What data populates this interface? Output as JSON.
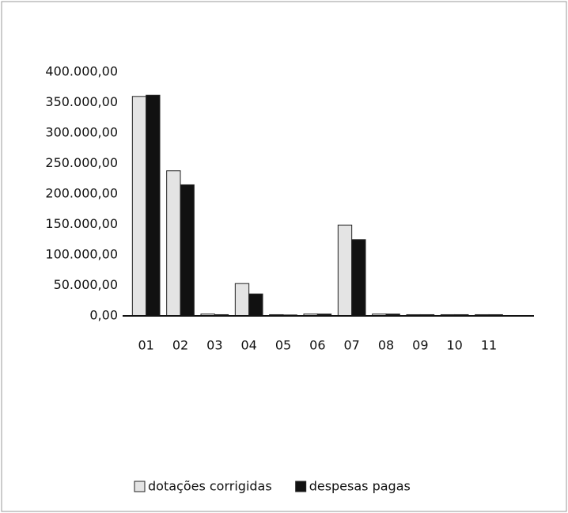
{
  "chart_data": {
    "type": "bar",
    "categories": [
      "01",
      "02",
      "03",
      "04",
      "05",
      "06",
      "07",
      "08",
      "09",
      "10",
      "11"
    ],
    "series": [
      {
        "name": "dotações corrigidas",
        "color": "#e4e4e4",
        "values": [
          360000,
          238000,
          3000,
          53000,
          2000,
          3000,
          149000,
          3000,
          2000,
          2000,
          2000
        ]
      },
      {
        "name": "despesas pagas",
        "color": "#111111",
        "values": [
          362000,
          215000,
          2000,
          36000,
          1500,
          3000,
          125000,
          3000,
          2000,
          2000,
          2000
        ]
      }
    ],
    "ylim": [
      0,
      400000
    ],
    "yticks": [
      {
        "value": 0,
        "label": "0,00"
      },
      {
        "value": 50000,
        "label": "50.000,00"
      },
      {
        "value": 100000,
        "label": "100.000,00"
      },
      {
        "value": 150000,
        "label": "150.000,00"
      },
      {
        "value": 200000,
        "label": "200.000,00"
      },
      {
        "value": 250000,
        "label": "250.000,00"
      },
      {
        "value": 300000,
        "label": "300.000,00"
      },
      {
        "value": 350000,
        "label": "350.000,00"
      },
      {
        "value": 400000,
        "label": "400.000,00"
      }
    ],
    "grid": true,
    "legend": "bottom"
  }
}
